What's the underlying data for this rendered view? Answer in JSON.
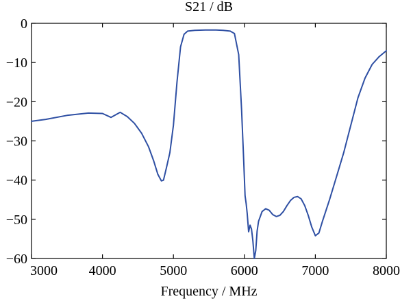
{
  "chart_data": {
    "type": "line",
    "title": "S21 / dB",
    "xlabel": "Frequency / MHz",
    "ylabel": "",
    "xlim": [
      3000,
      8000
    ],
    "ylim": [
      -60,
      0
    ],
    "xticks": [
      3000,
      4000,
      5000,
      6000,
      7000,
      8000
    ],
    "yticks": [
      0,
      -10,
      -20,
      -30,
      -40,
      -50,
      -60
    ],
    "grid": false,
    "line_color": "#2e4fa3",
    "series": [
      {
        "x": [
          3000,
          3200,
          3500,
          3800,
          4000,
          4120,
          4250,
          4350,
          4450,
          4550,
          4650,
          4720,
          4780,
          4830,
          4860,
          4900,
          4950,
          5000,
          5050,
          5100,
          5150,
          5200,
          5300,
          5450,
          5600,
          5700,
          5800,
          5860,
          5920,
          5960,
          5990,
          6010,
          6025,
          6040,
          6060,
          6080,
          6100,
          6120,
          6140,
          6160,
          6180,
          6200,
          6250,
          6300,
          6350,
          6400,
          6450,
          6500,
          6550,
          6600,
          6650,
          6700,
          6750,
          6800,
          6850,
          6900,
          6950,
          7000,
          7050,
          7100,
          7200,
          7300,
          7400,
          7500,
          7600,
          7700,
          7800,
          7900,
          8000
        ],
        "y": [
          -25.0,
          -24.5,
          -23.5,
          -22.9,
          -23.0,
          -24.0,
          -22.7,
          -23.8,
          -25.5,
          -28.0,
          -31.5,
          -35.0,
          -38.5,
          -40.2,
          -40.0,
          -37.0,
          -33.0,
          -26.0,
          -15.0,
          -6.0,
          -2.8,
          -2.0,
          -1.8,
          -1.7,
          -1.7,
          -1.8,
          -2.0,
          -2.6,
          -8.0,
          -22.0,
          -35.0,
          -44.0,
          -46.0,
          -48.5,
          -53.2,
          -51.5,
          -52.5,
          -55.5,
          -60.0,
          -58.0,
          -53.0,
          -50.5,
          -48.0,
          -47.3,
          -47.7,
          -48.8,
          -49.3,
          -49.0,
          -48.0,
          -46.5,
          -45.2,
          -44.4,
          -44.2,
          -44.8,
          -46.5,
          -49.0,
          -52.0,
          -54.2,
          -53.5,
          -50.5,
          -45.0,
          -39.0,
          -33.0,
          -26.0,
          -19.0,
          -14.0,
          -10.5,
          -8.5,
          -7.0
        ]
      }
    ]
  }
}
